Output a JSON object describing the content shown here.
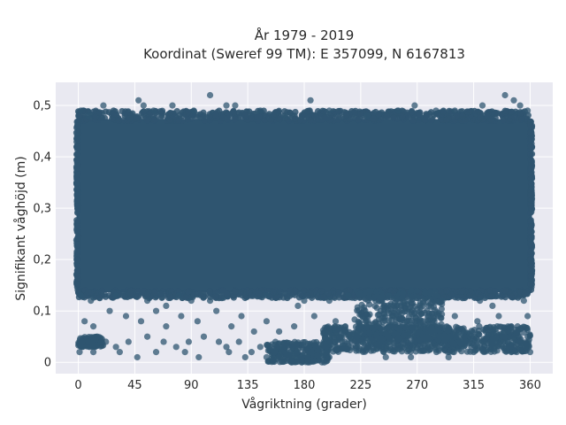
{
  "chart_data": {
    "type": "scatter",
    "title_line1": "År 1979 - 2019",
    "title_line2": "Koordinat (Sweref 99 TM): E 357099, N 6167813",
    "xlabel": "Vågriktning (grader)",
    "ylabel": "Signifikant våghöjd (m)",
    "xlim": [
      -18,
      378
    ],
    "ylim": [
      -0.022,
      0.545
    ],
    "xticks": [
      0,
      45,
      90,
      135,
      180,
      225,
      270,
      315,
      360
    ],
    "xtick_labels": [
      "0",
      "45",
      "90",
      "135",
      "180",
      "225",
      "270",
      "315",
      "360"
    ],
    "yticks": [
      0,
      0.1,
      0.2,
      0.3,
      0.4,
      0.5
    ],
    "ytick_labels": [
      "0",
      "0,1",
      "0,2",
      "0,3",
      "0,4",
      "0,5"
    ],
    "grid": true,
    "point_color": "#2f5570",
    "background_color": "#e9e9f1",
    "grid_color": "#ffffff",
    "dense_band": {
      "x_range": [
        0,
        360
      ],
      "y_range": [
        0.14,
        0.47
      ]
    },
    "sparse_points": [
      [
        2,
        0.49
      ],
      [
        8,
        0.48
      ],
      [
        20,
        0.5
      ],
      [
        48,
        0.51
      ],
      [
        52,
        0.5
      ],
      [
        60,
        0.49
      ],
      [
        75,
        0.5
      ],
      [
        92,
        0.49
      ],
      [
        105,
        0.52
      ],
      [
        118,
        0.5
      ],
      [
        125,
        0.5
      ],
      [
        145,
        0.49
      ],
      [
        165,
        0.48
      ],
      [
        185,
        0.51
      ],
      [
        200,
        0.49
      ],
      [
        230,
        0.48
      ],
      [
        255,
        0.49
      ],
      [
        268,
        0.5
      ],
      [
        285,
        0.49
      ],
      [
        300,
        0.49
      ],
      [
        322,
        0.5
      ],
      [
        340,
        0.52
      ],
      [
        347,
        0.51
      ],
      [
        352,
        0.5
      ],
      [
        358,
        0.49
      ],
      [
        2,
        0.13
      ],
      [
        10,
        0.12
      ],
      [
        30,
        0.13
      ],
      [
        55,
        0.12
      ],
      [
        80,
        0.13
      ],
      [
        105,
        0.12
      ],
      [
        150,
        0.13
      ],
      [
        180,
        0.12
      ],
      [
        215,
        0.13
      ],
      [
        240,
        0.12
      ],
      [
        260,
        0.11
      ],
      [
        290,
        0.12
      ],
      [
        320,
        0.12
      ],
      [
        355,
        0.12
      ],
      [
        5,
        0.08
      ],
      [
        12,
        0.07
      ],
      [
        25,
        0.1
      ],
      [
        38,
        0.09
      ],
      [
        50,
        0.08
      ],
      [
        62,
        0.1
      ],
      [
        70,
        0.07
      ],
      [
        82,
        0.09
      ],
      [
        95,
        0.08
      ],
      [
        110,
        0.1
      ],
      [
        122,
        0.07
      ],
      [
        130,
        0.09
      ],
      [
        140,
        0.06
      ],
      [
        150,
        0.08
      ],
      [
        160,
        0.06
      ],
      [
        172,
        0.07
      ],
      [
        188,
        0.09
      ],
      [
        205,
        0.08
      ],
      [
        250,
        0.09
      ],
      [
        275,
        0.08
      ],
      [
        300,
        0.09
      ],
      [
        318,
        0.08
      ],
      [
        335,
        0.09
      ],
      [
        350,
        0.07
      ],
      [
        358,
        0.09
      ],
      [
        3,
        0.04
      ],
      [
        8,
        0.04
      ],
      [
        15,
        0.05
      ],
      [
        22,
        0.04
      ],
      [
        30,
        0.03
      ],
      [
        40,
        0.04
      ],
      [
        55,
        0.05
      ],
      [
        68,
        0.04
      ],
      [
        78,
        0.03
      ],
      [
        88,
        0.04
      ],
      [
        100,
        0.05
      ],
      [
        112,
        0.04
      ],
      [
        118,
        0.03
      ],
      [
        128,
        0.04
      ],
      [
        138,
        0.02
      ],
      [
        145,
        0.03
      ],
      [
        352,
        0.04
      ],
      [
        356,
        0.03
      ],
      [
        340,
        0.05
      ],
      [
        330,
        0.04
      ],
      [
        1,
        0.02
      ],
      [
        12,
        0.02
      ],
      [
        33,
        0.02
      ],
      [
        47,
        0.01
      ],
      [
        62,
        0.02
      ],
      [
        85,
        0.02
      ],
      [
        96,
        0.01
      ],
      [
        120,
        0.02
      ],
      [
        133,
        0.01
      ],
      [
        150,
        0.01
      ],
      [
        160,
        0.01
      ],
      [
        170,
        0.0
      ],
      [
        178,
        0.0
      ],
      [
        183,
        0.0
      ],
      [
        200,
        0.01
      ],
      [
        245,
        0.01
      ],
      [
        265,
        0.01
      ],
      [
        295,
        0.01
      ],
      [
        315,
        0.02
      ],
      [
        345,
        0.02
      ],
      [
        360,
        0.02
      ],
      [
        70,
        0.11
      ],
      [
        90,
        0.12
      ],
      [
        175,
        0.11
      ],
      [
        200,
        0.12
      ],
      [
        265,
        0.14
      ],
      [
        330,
        0.11
      ]
    ],
    "low_clusters": [
      {
        "x_range": [
          150,
          200
        ],
        "y_range": [
          0.0,
          0.04
        ]
      },
      {
        "x_range": [
          195,
          360
        ],
        "y_range": [
          0.02,
          0.07
        ]
      },
      {
        "x_range": [
          220,
          290
        ],
        "y_range": [
          0.04,
          0.14
        ]
      },
      {
        "x_range": [
          0,
          20
        ],
        "y_range": [
          0.03,
          0.05
        ]
      }
    ]
  }
}
